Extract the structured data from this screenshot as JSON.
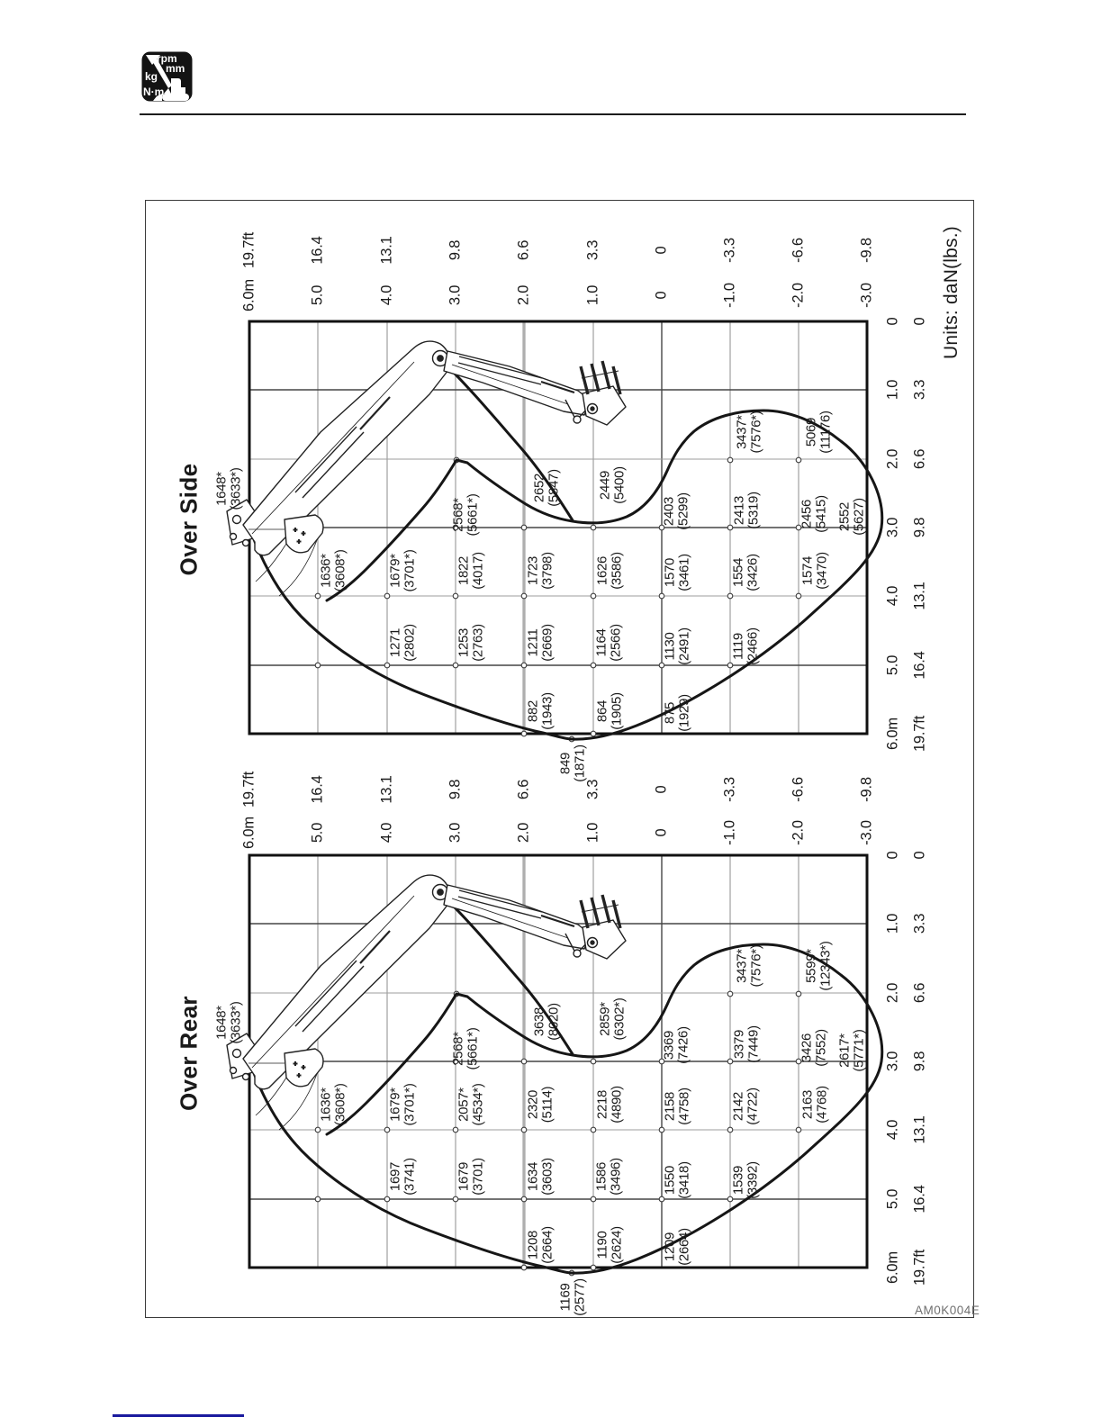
{
  "header": {
    "icon_labels": [
      "rpm",
      "mm",
      "kg",
      "N·m"
    ]
  },
  "units_note": "Units: daN(lbs.)",
  "figure_code": "AM0K004E",
  "axes": {
    "height_m": [
      "6.0m",
      "5.0",
      "4.0",
      "3.0",
      "2.0",
      "1.0",
      "0",
      "-1.0",
      "-2.0",
      "-3.0"
    ],
    "height_ft": [
      "19.7ft",
      "16.4",
      "13.1",
      "9.8",
      "6.6",
      "3.3",
      "0",
      "-3.3",
      "-6.6",
      "-9.8"
    ],
    "reach_m": [
      "0",
      "1.0",
      "2.0",
      "3.0",
      "4.0",
      "5.0",
      "6.0m"
    ],
    "reach_ft": [
      "0",
      "3.3",
      "6.6",
      "9.8",
      "13.1",
      "16.4",
      "19.7ft"
    ]
  },
  "chart_data": [
    {
      "type": "table",
      "title": "Over Side",
      "units": "daN(lbs.)",
      "cells": [
        "1648*\n(3633*)",
        "2568*\n(5661*)",
        "2652\n(5847)",
        "2449\n(5400)",
        "2403\n(5299)",
        "2413\n(5319)",
        "2456\n(5415)",
        "2552\n(5627)",
        "3437*\n(7576*)",
        "5069\n(11176)",
        "1636*\n(3608*)",
        "1679*\n(3701*)",
        "1822\n(4017)",
        "1723\n(3798)",
        "1626\n(3586)",
        "1570\n(3461)",
        "1554\n(3426)",
        "1574\n(3470)",
        "1271\n(2802)",
        "1253\n(2763)",
        "1211\n(2669)",
        "1164\n(2566)",
        "1130\n(2491)",
        "1119\n(2466)",
        "882\n(1943)",
        "864\n(1905)",
        "875\n(1929)",
        "849\n(1871)"
      ]
    },
    {
      "type": "table",
      "title": "Over Rear",
      "units": "daN(lbs.)",
      "cells": [
        "1648*\n(3633*)",
        "2568*\n(5661*)",
        "3638\n(8020)",
        "2859*\n(6302*)",
        "3369\n(7426)",
        "3379\n(7449)",
        "3426\n(7552)",
        "2617*\n(5771*)",
        "3437*\n(7576*)",
        "5599*\n(12343*)",
        "1636*\n(3608*)",
        "1679*\n(3701*)",
        "2057*\n(4534*)",
        "2320\n(5114)",
        "2218\n(4890)",
        "2158\n(4758)",
        "2142\n(4722)",
        "2163\n(4768)",
        "1697\n(3741)",
        "1679\n(3701)",
        "1634\n(3603)",
        "1586\n(3496)",
        "1550\n(3418)",
        "1539\n(3392)",
        "1208\n(2664)",
        "1190\n(2624)",
        "1209\n(2664)",
        "1169\n(2577)"
      ]
    }
  ]
}
